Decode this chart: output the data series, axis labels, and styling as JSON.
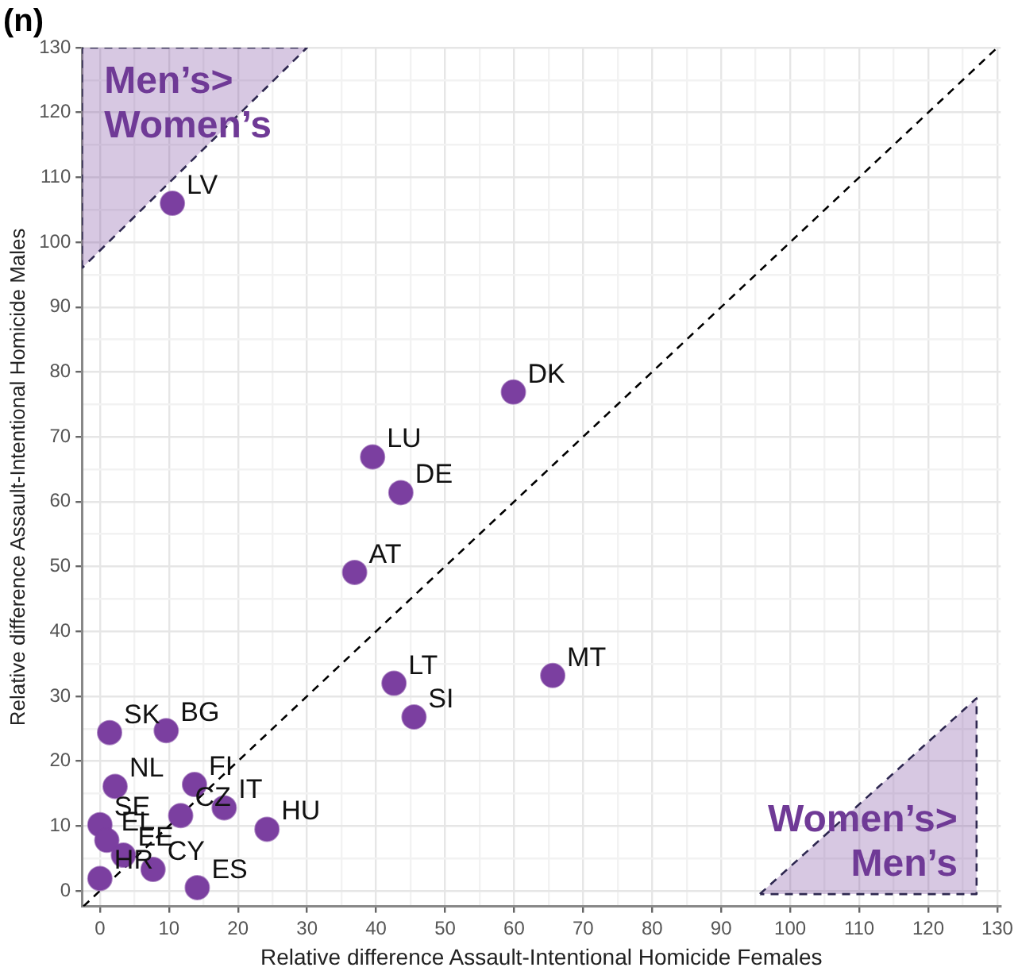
{
  "chart_data": {
    "type": "scatter",
    "title": "(n)",
    "xlabel": "Relative difference Assault-Intentional Homicide Females",
    "ylabel": "Relative difference Assault-Intentional Homicide Males",
    "xlim": [
      -2.6,
      130.5
    ],
    "ylim": [
      -2.4,
      130
    ],
    "xticks": [
      0,
      {
        "value": 5,
        "label": null
      },
      10,
      {
        "value": 15,
        "label": null
      },
      20,
      {
        "value": 25,
        "label": null
      },
      30,
      {
        "value": 35,
        "label": null
      },
      40,
      {
        "value": 45,
        "label": null
      },
      50,
      {
        "value": 55,
        "label": null
      },
      60,
      {
        "value": 65,
        "label": null
      },
      70,
      {
        "value": 75,
        "label": null
      },
      80,
      {
        "value": 85,
        "label": null
      },
      90,
      {
        "value": 95,
        "label": null
      },
      100,
      {
        "value": 105,
        "label": null
      },
      110,
      {
        "value": 115,
        "label": null
      },
      120,
      {
        "value": 125,
        "label": null
      },
      130
    ],
    "yticks": [
      0,
      {
        "value": 5,
        "label": null
      },
      10,
      {
        "value": 15,
        "label": null
      },
      20,
      {
        "value": 25,
        "label": null
      },
      30,
      {
        "value": 35,
        "label": null
      },
      40,
      {
        "value": 45,
        "label": null
      },
      50,
      {
        "value": 55,
        "label": null
      },
      60,
      {
        "value": 65,
        "label": null
      },
      70,
      {
        "value": 75,
        "label": null
      },
      80,
      {
        "value": 85,
        "label": null
      },
      90,
      {
        "value": 95,
        "label": null
      },
      100,
      {
        "value": 105,
        "label": null
      },
      110,
      {
        "value": 115,
        "label": null
      },
      120,
      {
        "value": 125,
        "label": null
      },
      130
    ],
    "grid": true,
    "legend": false,
    "marker": "circle",
    "series": [
      {
        "type": "area",
        "name": "Men’s> Women’s",
        "color": "#6f3a96",
        "line_style": "dashed",
        "marker": "none",
        "x": [
          -2.6,
          -2.6,
          30,
          -2.6
        ],
        "values": [
          96,
          130,
          130,
          96
        ]
      },
      {
        "type": "area",
        "name": "Women’s> Men’s",
        "color": "#6f3a96",
        "line_style": "dashed",
        "marker": "none",
        "x": [
          95.6,
          127,
          127,
          95.6
        ],
        "values": [
          -0.5,
          29.7,
          -0.5,
          -0.5
        ]
      },
      {
        "type": "line",
        "color": "#000000",
        "line_style": "dashed",
        "marker": "none",
        "x": [
          -2.4,
          130
        ],
        "values": [
          -2.4,
          130
        ]
      },
      {
        "type": "scatter",
        "color": "#7b3fa0",
        "x": [
          1.4,
          9.6,
          2.2,
          13.7,
          18,
          11.7,
          0,
          1,
          3.4,
          7.7,
          14.1,
          24.2,
          0,
          42.6,
          45.5,
          65.6,
          36.9,
          43.6,
          39.5,
          59.9,
          10.5
        ],
        "values": [
          24.4,
          24.7,
          16.1,
          16.4,
          12.8,
          11.6,
          10.2,
          7.8,
          5.5,
          3.3,
          0.5,
          9.5,
          1.9,
          32,
          26.8,
          33.2,
          49.1,
          61.4,
          66.9,
          76.9,
          106
        ]
      }
    ],
    "annotations": [
      {
        "text": "SK",
        "x": 1.4,
        "y": 24.4
      },
      {
        "text": "BG",
        "x": 9.6,
        "y": 24.7
      },
      {
        "text": "NL",
        "x": 2.2,
        "y": 16.1
      },
      {
        "text": "FI",
        "x": 13.7,
        "y": 16.4
      },
      {
        "text": "IT",
        "x": 18,
        "y": 12.8
      },
      {
        "text": "CZ",
        "x": 11.7,
        "y": 11.6
      },
      {
        "text": "SE",
        "x": 0,
        "y": 10.2
      },
      {
        "text": "EL",
        "x": 1,
        "y": 7.8
      },
      {
        "text": "EE",
        "x": 3.4,
        "y": 5.5
      },
      {
        "text": "CY",
        "x": 7.7,
        "y": 3.3
      },
      {
        "text": "ES",
        "x": 14.1,
        "y": 0.5
      },
      {
        "text": "HU",
        "x": 24.2,
        "y": 9.5
      },
      {
        "text": "HR",
        "x": 0,
        "y": 1.9
      },
      {
        "text": "LT",
        "x": 42.6,
        "y": 32
      },
      {
        "text": "SI",
        "x": 45.5,
        "y": 26.8
      },
      {
        "text": "MT",
        "x": 65.6,
        "y": 33.2
      },
      {
        "text": "AT",
        "x": 36.9,
        "y": 49.1
      },
      {
        "text": "DE",
        "x": 43.6,
        "y": 61.4
      },
      {
        "text": "LU",
        "x": 39.5,
        "y": 66.9
      },
      {
        "text": "DK",
        "x": 59.9,
        "y": 76.9
      },
      {
        "text": "LV",
        "x": 10.5,
        "y": 106
      }
    ]
  }
}
